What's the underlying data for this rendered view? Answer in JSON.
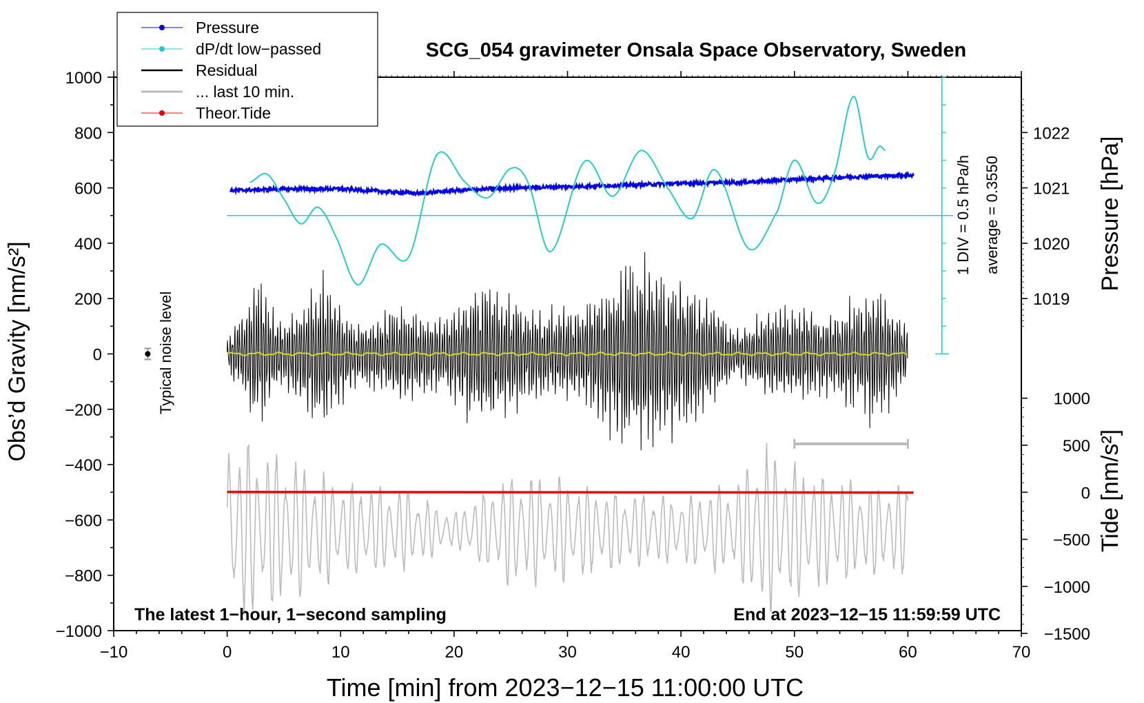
{
  "chart_data": {
    "type": "line",
    "title": "SCG_054 gravimeter Onsala Space Observatory, Sweden",
    "xlabel": "Time [min] from 2023−12−15 11:00:00 UTC",
    "ylabel_left": "Obs’d Gravity [nm/s²]",
    "ylabel_right_top": "Pressure [hPa]",
    "ylabel_right_bottom": "Tide [nm/s²]",
    "xlim": [
      -10,
      70
    ],
    "ylim": [
      -1000,
      1000
    ],
    "x_ticks": [
      "−10",
      "0",
      "10",
      "20",
      "30",
      "40",
      "50",
      "60",
      "70"
    ],
    "y_ticks": [
      "1000",
      "800",
      "600",
      "400",
      "200",
      "0",
      "−200",
      "−400",
      "−600",
      "−800",
      "−1000"
    ],
    "pressure_ticks": [
      "1022",
      "1021",
      "1020",
      "1019"
    ],
    "tide_ticks": [
      "1000",
      "500",
      "0",
      "−500",
      "−1000",
      "−1500"
    ],
    "legend": [
      {
        "label": "Pressure",
        "color": "#0000ee",
        "marker": true
      },
      {
        "label": "dP/dt low−passed",
        "color": "#22cccc",
        "marker": true
      },
      {
        "label": "Residual",
        "color": "#000000",
        "marker": false
      },
      {
        "label": "... last 10 min.",
        "color": "#bbbbbb",
        "marker": false
      },
      {
        "label": "Theor.Tide",
        "color": "#ee0000",
        "marker": true
      }
    ],
    "annotations": {
      "noise": "Typical noise level",
      "scale": "1 DIV = 0.5 hPa/h",
      "average": "average = 0.3550",
      "bottom_left": "The latest 1−hour, 1−second sampling",
      "bottom_right": "End at 2023−12−15 11:59:59 UTC"
    },
    "series": [
      {
        "name": "Pressure",
        "units": "hPa",
        "x": [
          0,
          5,
          10,
          15,
          17,
          20,
          25,
          30,
          35,
          40,
          45,
          50,
          55,
          60
        ],
        "values": [
          1020.95,
          1020.98,
          1020.98,
          1020.92,
          1020.9,
          1020.95,
          1021.0,
          1021.02,
          1021.05,
          1021.08,
          1021.1,
          1021.15,
          1021.2,
          1021.23
        ]
      },
      {
        "name": "dP/dt low−passed",
        "units": "nm/s² (display)",
        "x": [
          2,
          3.5,
          5,
          6.5,
          8,
          9.5,
          11.5,
          13.5,
          16,
          18.5,
          21,
          23,
          25,
          26.5,
          28.5,
          31.5,
          34,
          36.5,
          39,
          41,
          43,
          46,
          48.5,
          50,
          52,
          53.5,
          55.2,
          56.5,
          57.5,
          58
        ],
        "values": [
          620,
          650,
          560,
          470,
          530,
          430,
          250,
          395,
          350,
          720,
          620,
          565,
          670,
          620,
          370,
          695,
          570,
          735,
          590,
          490,
          665,
          380,
          515,
          700,
          545,
          650,
          930,
          710,
          750,
          735
        ]
      },
      {
        "name": "Residual",
        "units": "nm/s²",
        "x": [
          0,
          2.5,
          5,
          8.5,
          11.5,
          15.5,
          19,
          22.5,
          25,
          28,
          31,
          35.5,
          40,
          43,
          45,
          49,
          53,
          57,
          60
        ],
        "envelope": [
          60,
          320,
          140,
          330,
          130,
          210,
          150,
          330,
          250,
          180,
          200,
          400,
          340,
          210,
          100,
          230,
          170,
          290,
          140
        ]
      },
      {
        "name": "... last 10 min.",
        "units": "nm/s² (tide axis)",
        "x": [
          0,
          5,
          10,
          15,
          20,
          25,
          30,
          35,
          40,
          45,
          47,
          50,
          55,
          60
        ],
        "envelope": [
          950,
          780,
          500,
          450,
          180,
          600,
          500,
          400,
          350,
          500,
          900,
          700,
          500,
          480
        ]
      },
      {
        "name": "Theor.Tide",
        "units": "nm/s²",
        "x": [
          0,
          10,
          20,
          30,
          40,
          50,
          60.5
        ],
        "values": [
          3,
          2,
          1,
          0,
          -1,
          -2,
          -3
        ]
      }
    ]
  }
}
